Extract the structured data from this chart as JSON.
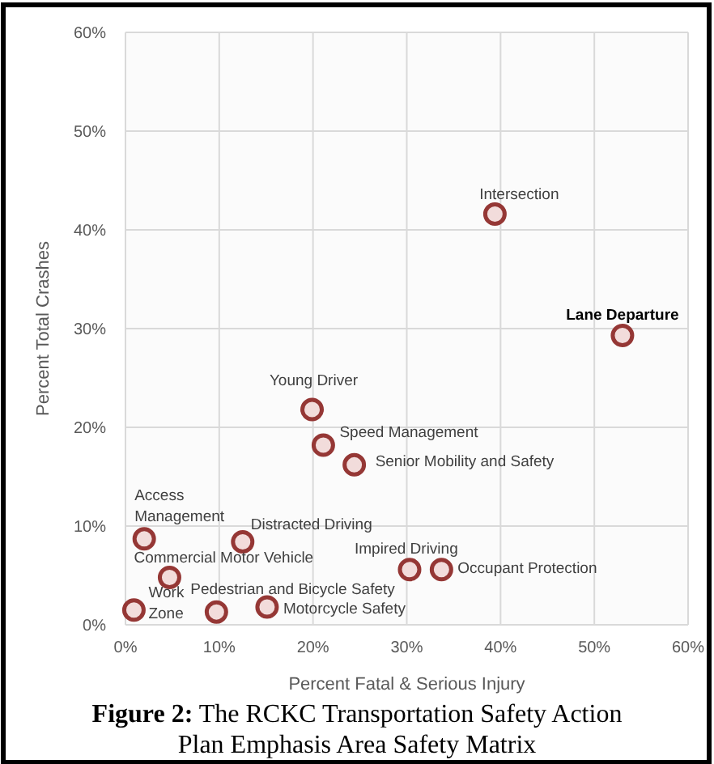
{
  "chart_data": {
    "type": "scatter",
    "title": "Figure 2: The RCKC Transportation Safety Action Plan Emphasis Area Safety Matrix",
    "xlabel": "Percent Fatal & Serious Injury",
    "ylabel": "Percent Total Crashes",
    "x": [
      39.4,
      53.0,
      19.9,
      21.1,
      24.4,
      2.0,
      12.5,
      4.7,
      30.3,
      33.7,
      0.9,
      9.7,
      15.1
    ],
    "series": [
      {
        "color": "#953735",
        "values": [
          41.6,
          29.3,
          21.8,
          18.2,
          16.2,
          8.7,
          8.4,
          4.8,
          5.6,
          5.6,
          1.5,
          1.3,
          1.8
        ]
      }
    ],
    "annotations": [
      {
        "text": "Intersection",
        "x": 39.4,
        "y": 41.6
      },
      {
        "text": "Lane Departure",
        "x": 53.0,
        "y": 29.3
      },
      {
        "text": "Young Driver",
        "x": 19.9,
        "y": 21.8
      },
      {
        "text": "Speed Management",
        "x": 21.1,
        "y": 18.2
      },
      {
        "text": "Senior Mobility and Safety",
        "x": 24.4,
        "y": 16.2
      },
      {
        "text": "Access Management",
        "x": 2.0,
        "y": 8.7
      },
      {
        "text": "Distracted Driving",
        "x": 12.5,
        "y": 8.4
      },
      {
        "text": "Commercial Motor Vehicle",
        "x": 4.7,
        "y": 4.8
      },
      {
        "text": "Impired Driving",
        "x": 30.3,
        "y": 5.6
      },
      {
        "text": "Occupant Protection",
        "x": 33.7,
        "y": 5.6
      },
      {
        "text": "Work Zone",
        "x": 0.9,
        "y": 1.5
      },
      {
        "text": "Pedestrian and Bicycle Safety",
        "x": 9.7,
        "y": 1.3
      },
      {
        "text": "Motorcycle Safety",
        "x": 15.1,
        "y": 1.8
      }
    ],
    "xlim": [
      0,
      60
    ],
    "ylim": [
      0,
      60
    ],
    "xticks": [
      {
        "value": 0,
        "label": "0%"
      },
      {
        "value": 10,
        "label": "10%"
      },
      {
        "value": 20,
        "label": "20%"
      },
      {
        "value": 30,
        "label": "30%"
      },
      {
        "value": 40,
        "label": "40%"
      },
      {
        "value": 50,
        "label": "50%"
      },
      {
        "value": 60,
        "label": "60%"
      }
    ],
    "yticks": [
      {
        "value": 0,
        "label": "0%"
      },
      {
        "value": 10,
        "label": "10%"
      },
      {
        "value": 20,
        "label": "20%"
      },
      {
        "value": 30,
        "label": "30%"
      },
      {
        "value": 40,
        "label": "40%"
      },
      {
        "value": 50,
        "label": "50%"
      },
      {
        "value": 60,
        "label": "60%"
      }
    ],
    "grid": true,
    "marker": "circle"
  }
}
